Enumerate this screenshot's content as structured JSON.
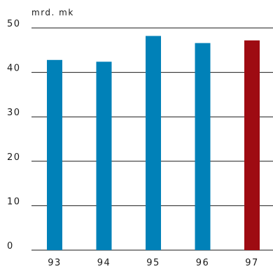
{
  "chart_data": {
    "type": "bar",
    "ylabel": "mrd. mk",
    "categories": [
      "93",
      "94",
      "95",
      "96",
      "97"
    ],
    "values": [
      42.8,
      42.4,
      48.2,
      46.6,
      47.2
    ],
    "ylim": [
      0,
      50
    ],
    "yticks": [
      0,
      10,
      20,
      30,
      40,
      50
    ],
    "grid": true,
    "colors": {
      "bar": "#0081b8",
      "highlight": "#9e0b12",
      "grid": "#1a1a1a"
    },
    "highlight_category": "97"
  }
}
